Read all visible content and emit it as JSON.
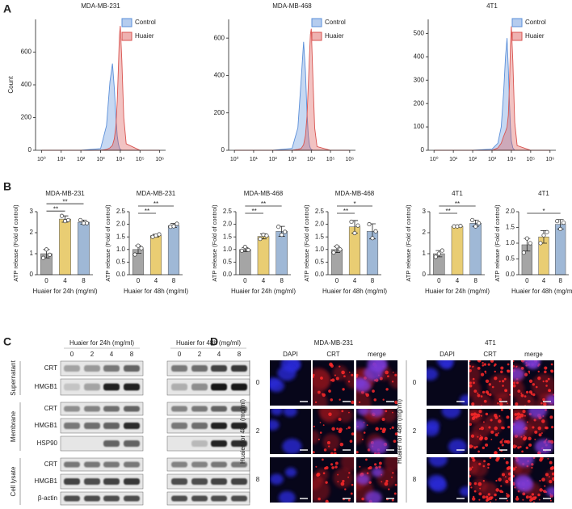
{
  "panel_labels": [
    "A",
    "B",
    "C",
    "D"
  ],
  "chart_data": [
    {
      "type": "area",
      "title": "MDA-MB-231",
      "ylabel": "Count",
      "xscale": "log",
      "legend": "upper right",
      "x": [
        1,
        100,
        1000,
        2000,
        3000,
        4000,
        5000,
        6000,
        7000,
        8000,
        9000,
        10000,
        12000,
        15000,
        20000,
        100000,
        1000000
      ],
      "series": [
        {
          "name": "Control",
          "color": "#5b8fd9",
          "values": [
            0,
            0,
            10,
            150,
            420,
            530,
            380,
            200,
            90,
            40,
            15,
            5,
            0,
            0,
            0,
            0,
            0
          ]
        },
        {
          "name": "Huaier",
          "color": "#d9534f",
          "values": [
            0,
            0,
            0,
            5,
            15,
            30,
            70,
            150,
            300,
            500,
            700,
            760,
            550,
            200,
            40,
            0,
            0
          ]
        }
      ],
      "xlim": [
        0.5,
        2000000
      ],
      "ylim": [
        0,
        800
      ],
      "yticks": [
        0,
        200,
        400,
        600
      ],
      "xticks": [
        {
          "value": 1,
          "label": "10⁰"
        },
        {
          "value": 10,
          "label": "10¹"
        },
        {
          "value": 100,
          "label": "10²"
        },
        {
          "value": 1000,
          "label": "10³"
        },
        {
          "value": 10000,
          "label": "10⁴"
        },
        {
          "value": 100000,
          "label": "10⁵"
        },
        {
          "value": 1000000,
          "label": "10⁶"
        }
      ]
    },
    {
      "type": "area",
      "title": "MDA-MB-468",
      "xscale": "log",
      "legend": "upper right",
      "x": [
        1,
        100,
        1000,
        2000,
        3000,
        4000,
        5000,
        6000,
        7000,
        8000,
        9000,
        10000,
        12000,
        15000,
        20000,
        100000,
        1000000
      ],
      "series": [
        {
          "name": "Control",
          "color": "#5b8fd9",
          "values": [
            0,
            0,
            10,
            120,
            380,
            580,
            420,
            200,
            80,
            30,
            10,
            5,
            0,
            0,
            0,
            0,
            0
          ]
        },
        {
          "name": "Huaier",
          "color": "#d9534f",
          "values": [
            0,
            0,
            0,
            5,
            10,
            30,
            80,
            180,
            350,
            500,
            620,
            650,
            400,
            120,
            20,
            0,
            0
          ]
        }
      ],
      "xlim": [
        0.5,
        2000000
      ],
      "ylim": [
        0,
        700
      ],
      "yticks": [
        0,
        200,
        400,
        600
      ],
      "xticks": [
        {
          "value": 1,
          "label": "10⁰"
        },
        {
          "value": 10,
          "label": "10¹"
        },
        {
          "value": 100,
          "label": "10²"
        },
        {
          "value": 1000,
          "label": "10³"
        },
        {
          "value": 10000,
          "label": "10⁴"
        },
        {
          "value": 100000,
          "label": "10⁵"
        },
        {
          "value": 1000000,
          "label": "10⁶"
        }
      ]
    },
    {
      "type": "area",
      "title": "4T1",
      "xscale": "log",
      "legend": "upper right",
      "x": [
        1,
        100,
        1000,
        2000,
        3000,
        4000,
        5000,
        6000,
        7000,
        8000,
        9000,
        10000,
        12000,
        15000,
        20000,
        100000,
        1000000
      ],
      "series": [
        {
          "name": "Control",
          "color": "#5b8fd9",
          "values": [
            0,
            0,
            5,
            30,
            100,
            250,
            400,
            480,
            350,
            200,
            100,
            40,
            10,
            0,
            0,
            0,
            0
          ]
        },
        {
          "name": "Huaier",
          "color": "#d9534f",
          "values": [
            0,
            0,
            0,
            10,
            30,
            60,
            80,
            100,
            150,
            280,
            450,
            530,
            380,
            120,
            20,
            0,
            0
          ]
        }
      ],
      "xlim": [
        0.5,
        2000000
      ],
      "ylim": [
        0,
        560
      ],
      "yticks": [
        0,
        100,
        200,
        300,
        400,
        500
      ],
      "xticks": [
        {
          "value": 1,
          "label": "10⁰"
        },
        {
          "value": 10,
          "label": "10¹"
        },
        {
          "value": 100,
          "label": "10²"
        },
        {
          "value": 1000,
          "label": "10³"
        },
        {
          "value": 10000,
          "label": "10⁴"
        },
        {
          "value": 100000,
          "label": "10⁵"
        },
        {
          "value": 1000000,
          "label": "10⁶"
        }
      ]
    },
    {
      "type": "bar",
      "title": "MDA-MB-231",
      "xlabel": "Huaier for 24h (mg/ml)",
      "ylabel": "ATP release (Fold of control)",
      "categories": [
        "0",
        "4",
        "8"
      ],
      "colors": [
        "#a5a5a5",
        "#e9cd73",
        "#9fb8d6"
      ],
      "values": [
        1.0,
        2.65,
        2.5
      ],
      "errors": [
        0.2,
        0.15,
        0.1
      ],
      "points": [
        [
          0.8,
          1.2,
          0.95
        ],
        [
          2.8,
          2.55,
          2.6
        ],
        [
          2.6,
          2.45,
          2.45
        ]
      ],
      "ylim": [
        0,
        3
      ],
      "yticks": [
        0,
        1,
        2,
        3
      ],
      "significance": [
        {
          "from": 0,
          "to": 1,
          "label": "**"
        },
        {
          "from": 0,
          "to": 2,
          "label": "**"
        }
      ]
    },
    {
      "type": "bar",
      "title": "MDA-MB-231",
      "xlabel": "Huaier for 48h (mg/ml)",
      "ylabel": "ATP release (Fold of control)",
      "categories": [
        "0",
        "4",
        "8"
      ],
      "colors": [
        "#a5a5a5",
        "#e9cd73",
        "#9fb8d6"
      ],
      "values": [
        1.0,
        1.55,
        1.95
      ],
      "errors": [
        0.15,
        0.05,
        0.08
      ],
      "points": [
        [
          0.8,
          1.15,
          1.05
        ],
        [
          1.5,
          1.55,
          1.6
        ],
        [
          1.9,
          1.92,
          2.02
        ]
      ],
      "ylim": [
        0,
        2.5
      ],
      "yticks": [
        {
          "value": 0,
          "label": "0.0"
        },
        0.5,
        {
          "value": 1,
          "label": "1.0"
        },
        1.5,
        {
          "value": 2,
          "label": "2.0"
        },
        2.5
      ],
      "significance": [
        {
          "from": 0,
          "to": 1,
          "label": "**"
        },
        {
          "from": 0,
          "to": 2,
          "label": "**"
        }
      ]
    },
    {
      "type": "bar",
      "title": "MDA-MB-468",
      "xlabel": "Huaier for 24h (mg/ml)",
      "ylabel": "ATP release (Fold of control)",
      "categories": [
        "0",
        "4",
        "8"
      ],
      "colors": [
        "#a5a5a5",
        "#e9cd73",
        "#9fb8d6"
      ],
      "values": [
        1.0,
        1.52,
        1.72
      ],
      "errors": [
        0.08,
        0.1,
        0.2
      ],
      "points": [
        [
          0.95,
          1.1,
          0.98
        ],
        [
          1.42,
          1.58,
          1.55
        ],
        [
          1.9,
          1.58,
          1.7
        ]
      ],
      "ylim": [
        0,
        2.5
      ],
      "yticks": [
        {
          "value": 0,
          "label": "0.0"
        },
        0.5,
        {
          "value": 1,
          "label": "1.0"
        },
        1.5,
        {
          "value": 2,
          "label": "2.0"
        },
        2.5
      ],
      "significance": [
        {
          "from": 0,
          "to": 1,
          "label": "**"
        },
        {
          "from": 0,
          "to": 2,
          "label": "**"
        }
      ]
    },
    {
      "type": "bar",
      "title": "MDA-MB-468",
      "xlabel": "Huaier for 48h (mg/ml)",
      "ylabel": "ATP release (Fold of control)",
      "categories": [
        "0",
        "4",
        "8"
      ],
      "colors": [
        "#a5a5a5",
        "#e9cd73",
        "#9fb8d6"
      ],
      "values": [
        1.0,
        1.9,
        1.72
      ],
      "errors": [
        0.12,
        0.25,
        0.3
      ],
      "points": [
        [
          0.88,
          1.12,
          1.0
        ],
        [
          2.1,
          1.65,
          1.95
        ],
        [
          2.0,
          1.45,
          1.72
        ]
      ],
      "ylim": [
        0,
        2.5
      ],
      "yticks": [
        {
          "value": 0,
          "label": "0.0"
        },
        0.5,
        {
          "value": 1,
          "label": "1.0"
        },
        1.5,
        {
          "value": 2,
          "label": "2.0"
        },
        2.5
      ],
      "significance": [
        {
          "from": 0,
          "to": 1,
          "label": "**"
        },
        {
          "from": 0,
          "to": 2,
          "label": "*"
        }
      ]
    },
    {
      "type": "bar",
      "title": "4T1",
      "xlabel": "Huaier for 24h (mg/ml)",
      "ylabel": "ATP release (Fold of control)",
      "categories": [
        "0",
        "4",
        "8"
      ],
      "colors": [
        "#a5a5a5",
        "#e9cd73",
        "#9fb8d6"
      ],
      "values": [
        1.0,
        2.3,
        2.45
      ],
      "errors": [
        0.15,
        0.02,
        0.15
      ],
      "points": [
        [
          0.85,
          1.0,
          1.15
        ],
        [
          2.3,
          2.3,
          2.32
        ],
        [
          2.6,
          2.3,
          2.45
        ]
      ],
      "ylim": [
        0,
        3
      ],
      "yticks": [
        0,
        1,
        2,
        3
      ],
      "significance": [
        {
          "from": 0,
          "to": 1,
          "label": "**"
        },
        {
          "from": 0,
          "to": 2,
          "label": "**"
        }
      ]
    },
    {
      "type": "bar",
      "title": "4T1",
      "xlabel": "Huaier for 48h (mg/ml)",
      "ylabel": "ATP release (Fold of control)",
      "categories": [
        "0",
        "4",
        "8"
      ],
      "colors": [
        "#a5a5a5",
        "#e9cd73",
        "#9fb8d6"
      ],
      "values": [
        0.95,
        1.2,
        1.6
      ],
      "errors": [
        0.2,
        0.2,
        0.15
      ],
      "points": [
        [
          0.7,
          1.15,
          1.0
        ],
        [
          1.0,
          1.25,
          1.35
        ],
        [
          1.7,
          1.45,
          1.65
        ]
      ],
      "ylim": [
        0,
        2
      ],
      "yticks": [
        {
          "value": 0,
          "label": "0.0"
        },
        0.5,
        {
          "value": 1,
          "label": "1.0"
        },
        1.5,
        {
          "value": 2,
          "label": "2.0"
        }
      ],
      "significance": [
        {
          "from": 0,
          "to": 2,
          "label": "*"
        }
      ]
    }
  ],
  "western_blot": {
    "headers": [
      "Huaier for 24h (mg/ml)",
      "Huaier for 48h (mg/ml)"
    ],
    "lanes": [
      "0",
      "2",
      "4",
      "8"
    ],
    "groups": [
      {
        "name": "Supernatant",
        "rows": [
          "CRT",
          "HMGB1"
        ]
      },
      {
        "name": "Membrane",
        "rows": [
          "CRT",
          "HMGB1",
          "HSP90"
        ]
      },
      {
        "name": "Cell lysate",
        "rows": [
          "CRT",
          "HMGB1",
          "β-actin"
        ]
      }
    ]
  },
  "microscopy": {
    "groups": [
      {
        "title": "MDA-MB-231",
        "columns": [
          "DAPI",
          "CRT",
          "merge"
        ],
        "rows": [
          "0",
          "2",
          "8"
        ],
        "ylabel": "Huaier for 48h (mg/ml)"
      },
      {
        "title": "4T1",
        "columns": [
          "DAPI",
          "CRT",
          "merge"
        ],
        "rows": [
          "0",
          "2",
          "8"
        ],
        "ylabel": "Huaier for 48h (mg/ml)"
      }
    ]
  }
}
